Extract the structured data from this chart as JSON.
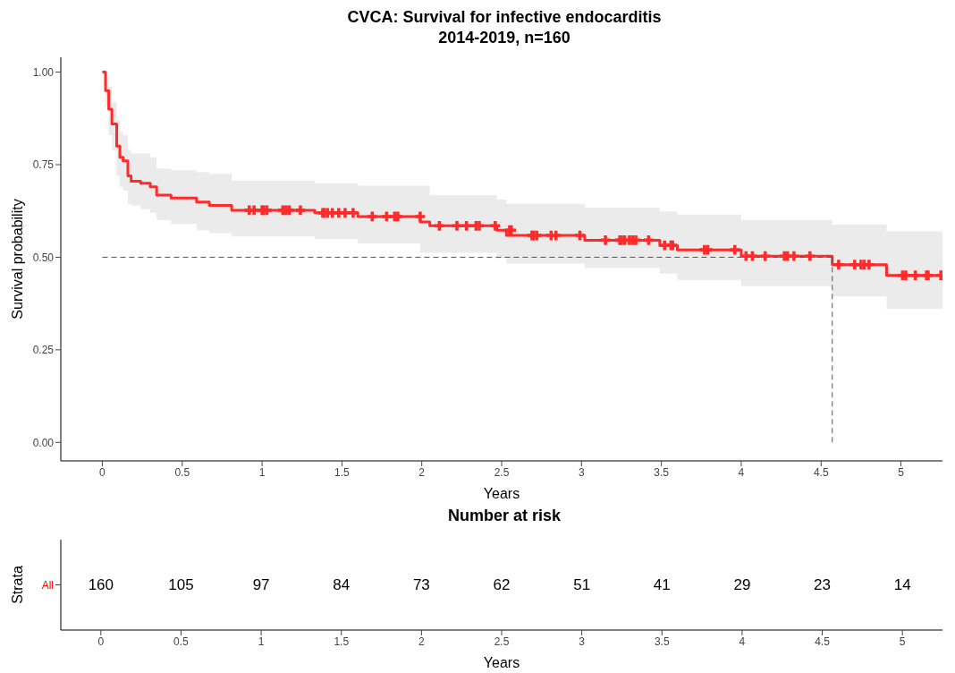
{
  "chart_data": [
    {
      "type": "step",
      "title": "CVCA: Survival for infective endocarditis",
      "subtitle": "2014-2019, n=160",
      "xlabel": "Years",
      "ylabel": "Survival probability",
      "xlim": [
        -0.26,
        5.26
      ],
      "xticks": [
        0,
        0.5,
        1,
        1.5,
        2,
        2.5,
        3,
        3.5,
        4,
        4.5,
        5
      ],
      "ylim": [
        -0.05,
        1.04
      ],
      "yticks": [
        {
          "value": 0,
          "label": "0.00"
        },
        {
          "value": 0.25,
          "label": "0.25"
        },
        {
          "value": 0.5,
          "label": "0.50"
        },
        {
          "value": 0.75,
          "label": "0.75"
        },
        {
          "value": 1,
          "label": "1.00"
        }
      ],
      "series": [
        {
          "type": "step",
          "color": "#ff2b2b",
          "x": [
            0,
            0.02,
            0.04,
            0.06,
            0.09,
            0.11,
            0.13,
            0.16,
            0.18,
            0.24,
            0.3,
            0.34,
            0.43,
            0.59,
            0.67,
            0.81,
            1.33,
            1.6,
            1.99,
            2.05,
            2.47,
            2.53,
            3.02,
            3.49,
            3.6,
            4.0,
            4.57,
            4.91,
            5.26
          ],
          "values": [
            1.0,
            0.95,
            0.9,
            0.86,
            0.8,
            0.77,
            0.76,
            0.72,
            0.705,
            0.7,
            0.69,
            0.668,
            0.66,
            0.649,
            0.64,
            0.627,
            0.62,
            0.61,
            0.595,
            0.585,
            0.573,
            0.559,
            0.546,
            0.532,
            0.52,
            0.503,
            0.48,
            0.451,
            0.451
          ],
          "upper": [
            1.0,
            0.99,
            0.96,
            0.92,
            0.87,
            0.84,
            0.83,
            0.79,
            0.78,
            0.78,
            0.77,
            0.74,
            0.735,
            0.73,
            0.725,
            0.707,
            0.7,
            0.693,
            0.693,
            0.668,
            0.656,
            0.644,
            0.634,
            0.624,
            0.615,
            0.6,
            0.588,
            0.57,
            0.57
          ],
          "lower": [
            1.0,
            0.91,
            0.83,
            0.79,
            0.72,
            0.69,
            0.68,
            0.644,
            0.64,
            0.63,
            0.62,
            0.6,
            0.59,
            0.573,
            0.565,
            0.556,
            0.549,
            0.537,
            0.512,
            0.512,
            0.498,
            0.483,
            0.471,
            0.456,
            0.439,
            0.422,
            0.395,
            0.361,
            0.361
          ]
        },
        {
          "type": "scatter",
          "color": "#ff2b2b",
          "marker": "cross",
          "x": [
            0.92,
            0.95,
            1.0,
            1.01,
            1.03,
            1.13,
            1.15,
            1.17,
            1.24,
            1.38,
            1.39,
            1.41,
            1.44,
            1.48,
            1.52,
            1.57,
            1.69,
            1.78,
            1.83,
            1.85,
            1.99,
            2.11,
            2.22,
            2.28,
            2.34,
            2.36,
            2.46,
            2.55,
            2.56,
            2.69,
            2.7,
            2.72,
            2.81,
            2.84,
            2.99,
            3.15,
            3.24,
            3.25,
            3.27,
            3.3,
            3.32,
            3.34,
            3.42,
            3.52,
            3.56,
            3.57,
            3.77,
            3.79,
            3.96,
            4.03,
            4.07,
            4.15,
            4.27,
            4.29,
            4.33,
            4.43,
            4.61,
            4.71,
            4.75,
            4.77,
            4.8,
            5.01,
            5.03,
            5.09,
            5.16,
            5.17,
            5.25
          ],
          "values": [
            0.627,
            0.627,
            0.627,
            0.627,
            0.627,
            0.627,
            0.627,
            0.627,
            0.627,
            0.62,
            0.62,
            0.62,
            0.62,
            0.62,
            0.62,
            0.62,
            0.61,
            0.61,
            0.61,
            0.61,
            0.61,
            0.585,
            0.585,
            0.585,
            0.585,
            0.585,
            0.585,
            0.573,
            0.573,
            0.559,
            0.559,
            0.559,
            0.559,
            0.559,
            0.559,
            0.546,
            0.546,
            0.546,
            0.546,
            0.546,
            0.546,
            0.546,
            0.546,
            0.532,
            0.532,
            0.532,
            0.52,
            0.52,
            0.52,
            0.503,
            0.503,
            0.503,
            0.503,
            0.503,
            0.503,
            0.503,
            0.48,
            0.48,
            0.48,
            0.48,
            0.48,
            0.451,
            0.451,
            0.451,
            0.451,
            0.451,
            0.451
          ]
        }
      ],
      "ref_lines": [
        {
          "axis": "y",
          "value": 0.5,
          "color": "#555555",
          "line_style": "dashed"
        },
        {
          "axis": "x",
          "value": 4.57,
          "color": "#555555",
          "line_style": "dashed"
        }
      ]
    },
    {
      "type": "heatmap",
      "title": "Number at risk",
      "xlabel": "Years",
      "ylabel": "Strata",
      "categories": [
        "0",
        "0.5",
        "1",
        "1.5",
        "2",
        "2.5",
        "3",
        "3.5",
        "4",
        "4.5",
        "5"
      ],
      "y_categories": [
        "All"
      ],
      "cells": [
        [
          160,
          105,
          97,
          84,
          73,
          62,
          51,
          41,
          29,
          23,
          14
        ]
      ],
      "data_labels": true
    }
  ]
}
